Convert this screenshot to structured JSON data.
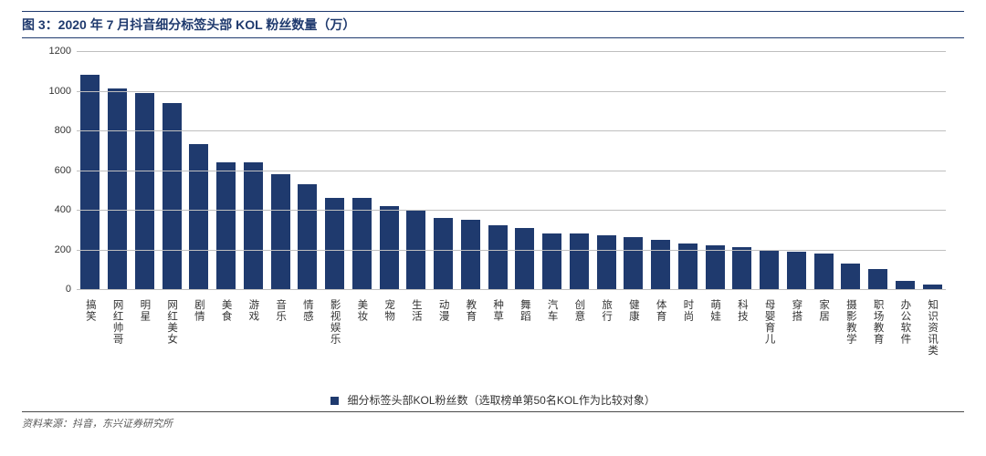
{
  "title": "图 3：2020 年 7 月抖音细分标签头部 KOL 粉丝数量（万）",
  "source": "资料来源：抖音，东兴证券研究所",
  "chart": {
    "type": "bar",
    "bar_color": "#1f3a6e",
    "grid_color": "#bfbfbf",
    "background_color": "#ffffff",
    "title_color": "#1f3a6e",
    "title_fontsize": 14,
    "label_fontsize": 11,
    "ylabel": "",
    "ylim": [
      0,
      1200
    ],
    "ytick_step": 200,
    "bar_width": 0.7,
    "categories": [
      "搞笑",
      "网红帅哥",
      "明星",
      "网红美女",
      "剧情",
      "美食",
      "游戏",
      "音乐",
      "情感",
      "影视娱乐",
      "美妆",
      "宠物",
      "生活",
      "动漫",
      "教育",
      "种草",
      "舞蹈",
      "汽车",
      "创意",
      "旅行",
      "健康",
      "体育",
      "时尚",
      "萌娃",
      "科技",
      "母婴育儿",
      "穿搭",
      "家居",
      "摄影教学",
      "职场教育",
      "办公软件",
      "知识资讯类"
    ],
    "values": [
      1080,
      1010,
      990,
      940,
      730,
      640,
      640,
      580,
      530,
      460,
      460,
      420,
      400,
      360,
      350,
      320,
      310,
      280,
      280,
      270,
      260,
      250,
      230,
      220,
      210,
      200,
      190,
      180,
      130,
      100,
      40,
      25
    ]
  },
  "legend": {
    "text": "细分标签头部KOL粉丝数（选取榜单第50名KOL作为比较对象）",
    "swatch_color": "#1f3a6e"
  }
}
